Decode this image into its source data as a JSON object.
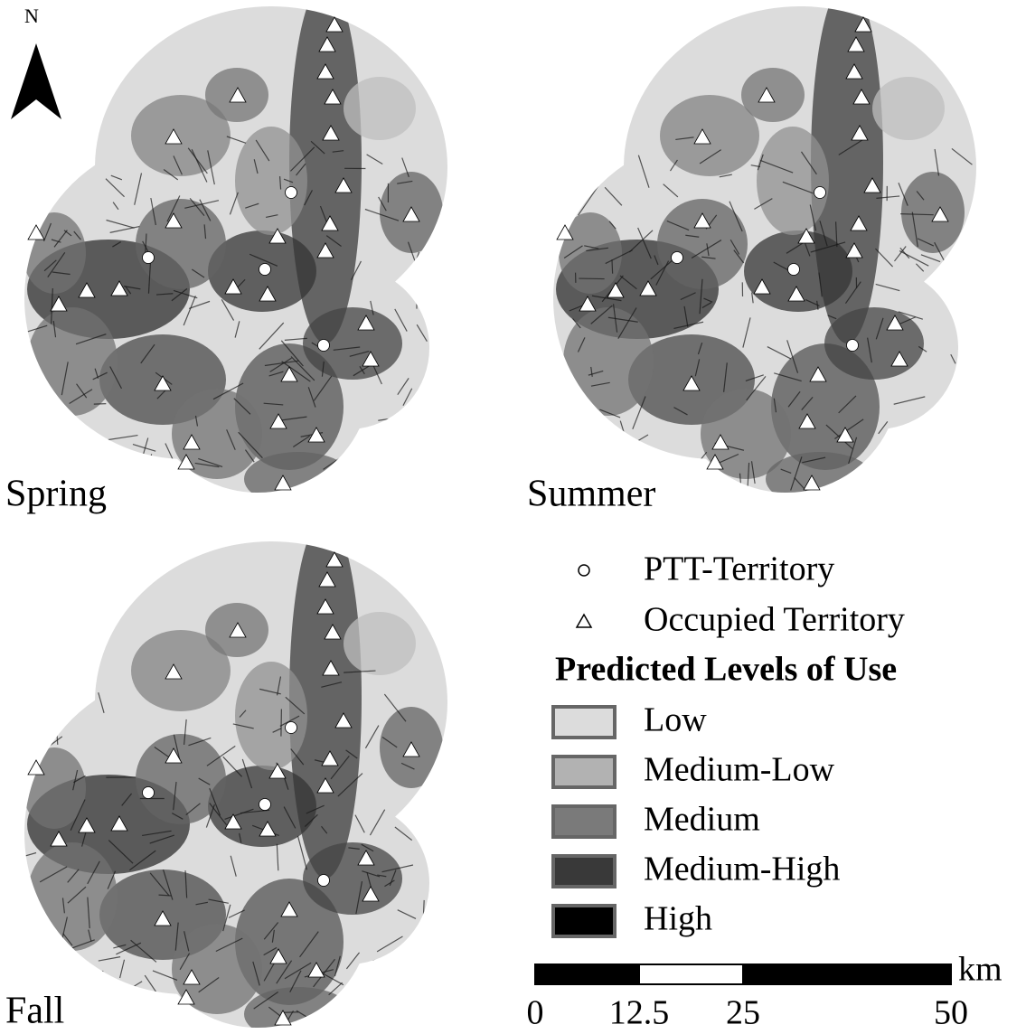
{
  "north": "N",
  "maps": [
    {
      "label": "Spring"
    },
    {
      "label": "Summer"
    },
    {
      "label": "Fall"
    }
  ],
  "legend": {
    "markers": [
      {
        "label": "PTT-Territory"
      },
      {
        "label": "Occupied Territory"
      }
    ],
    "title": "Predicted Levels of Use",
    "levels": [
      {
        "label": "Low",
        "color": "#dcdcdc"
      },
      {
        "label": "Medium-Low",
        "color": "#b2b2b2"
      },
      {
        "label": "Medium",
        "color": "#7a7a7a"
      },
      {
        "label": "Medium-High",
        "color": "#393939"
      },
      {
        "label": "High",
        "color": "#000000"
      }
    ]
  },
  "scale_bar": {
    "unit": "km",
    "ticks": [
      0,
      12.5,
      25,
      50
    ]
  }
}
